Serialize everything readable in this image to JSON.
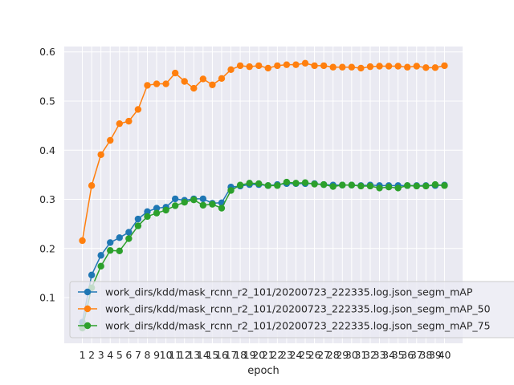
{
  "chart_data": {
    "type": "line",
    "title": "",
    "xlabel": "epoch",
    "ylabel": "",
    "x": [
      1,
      2,
      3,
      4,
      5,
      6,
      7,
      8,
      9,
      10,
      11,
      12,
      13,
      14,
      15,
      16,
      17,
      18,
      19,
      20,
      21,
      22,
      23,
      24,
      25,
      26,
      27,
      28,
      29,
      30,
      31,
      32,
      33,
      34,
      35,
      36,
      37,
      38,
      39,
      40
    ],
    "xticks": [
      "1",
      "2",
      "3",
      "4",
      "5",
      "6",
      "7",
      "8",
      "9",
      "10",
      "11",
      "12",
      "13",
      "14",
      "15",
      "16",
      "17",
      "18",
      "19",
      "20",
      "21",
      "22",
      "23",
      "24",
      "25",
      "26",
      "27",
      "28",
      "29",
      "30",
      "31",
      "32",
      "33",
      "34",
      "35",
      "36",
      "37",
      "38",
      "39",
      "40"
    ],
    "yticks": [
      0.1,
      0.2,
      0.3,
      0.4,
      0.5,
      0.6
    ],
    "ytick_labels": [
      "0.1",
      "0.2",
      "0.3",
      "0.4",
      "0.5",
      "0.6"
    ],
    "xlim": [
      -0.95,
      41.95
    ],
    "ylim": [
      0.007,
      0.611
    ],
    "grid": true,
    "legend_position": "lower-left",
    "series": [
      {
        "name": "work_dirs/kdd/mask_rcnn_r2_101/20200723_222335.log.json_segm_mAP",
        "color": "#1f77b4",
        "values": [
          0.05,
          0.146,
          0.186,
          0.212,
          0.222,
          0.233,
          0.26,
          0.275,
          0.282,
          0.284,
          0.301,
          0.298,
          0.301,
          0.301,
          0.292,
          0.293,
          0.325,
          0.327,
          0.33,
          0.33,
          0.328,
          0.33,
          0.332,
          0.332,
          0.332,
          0.332,
          0.33,
          0.329,
          0.329,
          0.329,
          0.328,
          0.329,
          0.328,
          0.328,
          0.328,
          0.328,
          0.328,
          0.328,
          0.328,
          0.329
        ]
      },
      {
        "name": "work_dirs/kdd/mask_rcnn_r2_101/20200723_222335.log.json_segm_mAP_50",
        "color": "#ff7f0e",
        "values": [
          0.216,
          0.328,
          0.391,
          0.42,
          0.454,
          0.459,
          0.483,
          0.532,
          0.535,
          0.535,
          0.557,
          0.54,
          0.526,
          0.545,
          0.533,
          0.546,
          0.564,
          0.572,
          0.57,
          0.572,
          0.567,
          0.572,
          0.574,
          0.574,
          0.577,
          0.572,
          0.572,
          0.569,
          0.569,
          0.569,
          0.567,
          0.57,
          0.571,
          0.571,
          0.571,
          0.569,
          0.571,
          0.568,
          0.568,
          0.572
        ]
      },
      {
        "name": "work_dirs/kdd/mask_rcnn_r2_101/20200723_222335.log.json_segm_mAP_75",
        "color": "#2ca02c",
        "values": [
          0.038,
          0.12,
          0.164,
          0.196,
          0.195,
          0.22,
          0.246,
          0.265,
          0.272,
          0.278,
          0.287,
          0.294,
          0.299,
          0.288,
          0.29,
          0.282,
          0.318,
          0.329,
          0.333,
          0.332,
          0.328,
          0.328,
          0.335,
          0.333,
          0.334,
          0.331,
          0.33,
          0.326,
          0.329,
          0.329,
          0.327,
          0.327,
          0.323,
          0.325,
          0.323,
          0.328,
          0.327,
          0.327,
          0.33,
          0.328
        ]
      }
    ]
  }
}
